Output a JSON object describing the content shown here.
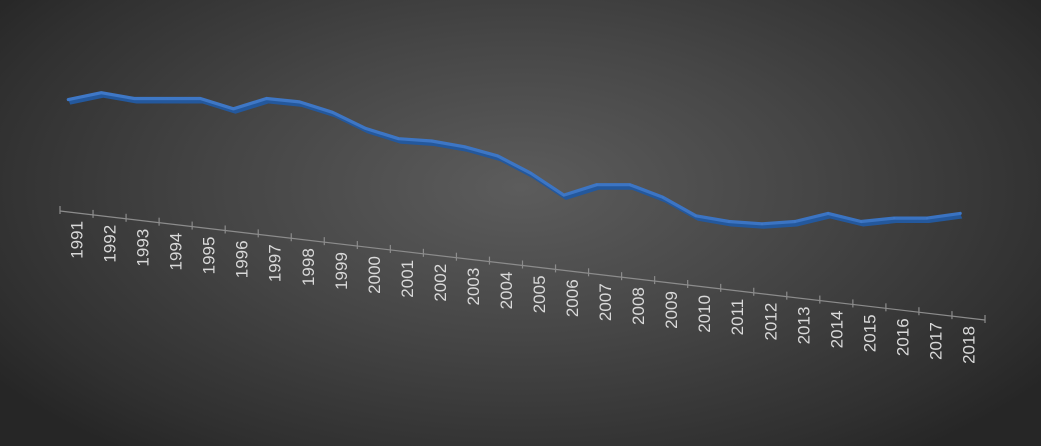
{
  "chart_data": {
    "type": "line",
    "title": "",
    "xlabel": "",
    "ylabel": "",
    "categories": [
      "1991",
      "1992",
      "1993",
      "1994",
      "1995",
      "1996",
      "1997",
      "1998",
      "1999",
      "2000",
      "2001",
      "2002",
      "2003",
      "2004",
      "2005",
      "2006",
      "2007",
      "2008",
      "2009",
      "2010",
      "2011",
      "2012",
      "2013",
      "2014",
      "2015",
      "2016",
      "2017",
      "2018"
    ],
    "series": [
      {
        "values": [
          96,
          102,
          97,
          97,
          97,
          88,
          97,
          94,
          85,
          71,
          62,
          60,
          55,
          47,
          32,
          13,
          22,
          22,
          11,
          -5,
          -10,
          -12,
          -10,
          -3,
          -10,
          -7,
          -7,
          -3
        ]
      }
    ],
    "value_axis_visible": false,
    "grid": false,
    "legend": "none",
    "three_d_perspective": true,
    "colors": {
      "series_line": "#3f78c7",
      "series_ribbon": "#24589c",
      "axis": "#8c8c8c",
      "tick_label": "#d9d9d9"
    }
  }
}
